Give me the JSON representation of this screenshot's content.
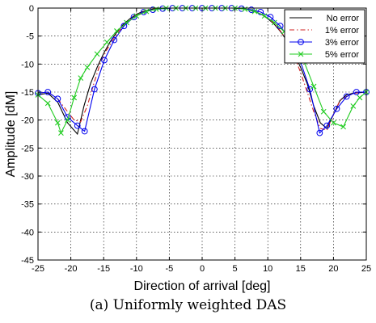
{
  "caption": "(a) Uniformly weighted DAS",
  "chart_data": {
    "type": "line",
    "title": "",
    "xlabel": "Direction of arrival [deg]",
    "ylabel": "Amplitude [dM]",
    "xlim": [
      -25,
      25
    ],
    "ylim": [
      -45,
      0
    ],
    "xticks": [
      -25,
      -20,
      -15,
      -10,
      -5,
      0,
      5,
      10,
      15,
      20,
      25
    ],
    "yticks": [
      0,
      -5,
      -10,
      -15,
      -20,
      -25,
      -30,
      -35,
      -40,
      -45
    ],
    "grid": true,
    "legend_position": "top-right",
    "series": [
      {
        "name": "No error",
        "color": "#000000",
        "dash": "solid",
        "marker": "none",
        "x": [
          -25,
          -23.5,
          -22,
          -20.5,
          -19,
          -18,
          -17,
          -16,
          -15,
          -14,
          -13,
          -12,
          -11,
          -10,
          -9,
          -8,
          -7,
          -6,
          -5,
          -4,
          -3,
          -2,
          -1,
          0,
          1,
          2,
          3,
          4,
          5,
          6,
          7,
          8,
          9,
          10,
          11,
          12,
          13,
          14,
          15,
          16,
          17,
          18,
          19,
          20,
          21,
          22,
          23,
          24,
          25
        ],
        "y": [
          -15.5,
          -15.2,
          -16.8,
          -20.5,
          -22.5,
          -17.5,
          -13.5,
          -10.6,
          -8.1,
          -6.0,
          -4.3,
          -2.9,
          -1.9,
          -1.1,
          -0.6,
          -0.3,
          -0.1,
          0,
          0,
          0,
          0,
          0,
          0,
          0,
          0,
          0,
          0,
          0,
          0,
          -0.1,
          -0.3,
          -0.6,
          -1.1,
          -1.9,
          -2.9,
          -4.3,
          -6.0,
          -8.1,
          -10.6,
          -13.5,
          -17.5,
          -20.5,
          -21.5,
          -19.0,
          -16.5,
          -15.5,
          -15.2,
          -15.1,
          -15.0
        ]
      },
      {
        "name": "1% error",
        "color": "#d02020",
        "dash": "dashdot",
        "marker": "none",
        "x": [
          -25,
          -23.5,
          -22,
          -20.5,
          -19.5,
          -18.5,
          -17.5,
          -16.5,
          -15.5,
          -14.5,
          -13,
          -12,
          -11,
          -10,
          -9,
          -8,
          -7,
          -6,
          -5,
          -4,
          -3,
          -2,
          -1,
          0,
          1,
          2,
          3,
          4,
          5,
          6,
          7,
          8,
          9,
          10,
          11,
          12,
          13,
          14,
          15,
          16,
          17,
          18,
          19,
          20,
          21,
          22,
          23,
          24,
          25
        ],
        "y": [
          -15.2,
          -15.0,
          -16.2,
          -18.5,
          -20.0,
          -20.3,
          -17.5,
          -13.5,
          -9.8,
          -7.4,
          -4.6,
          -3.2,
          -2.1,
          -1.2,
          -0.7,
          -0.3,
          -0.1,
          0,
          0,
          0,
          0,
          0,
          0,
          0,
          0,
          0,
          0,
          0,
          0,
          -0.1,
          -0.3,
          -0.6,
          -1.1,
          -1.8,
          -2.8,
          -4.2,
          -6.0,
          -8.5,
          -11.5,
          -15.0,
          -18.5,
          -21.5,
          -21.8,
          -19.0,
          -16.5,
          -15.8,
          -15.3,
          -15.0,
          -15.0
        ]
      },
      {
        "name": "3% error",
        "color": "#0000ee",
        "dash": "solid",
        "marker": "circle",
        "x": [
          -25,
          -23.5,
          -22,
          -20.5,
          -19,
          -17.9,
          -16.4,
          -14.9,
          -13.4,
          -11.9,
          -10.4,
          -8.9,
          -7.5,
          -6,
          -4.5,
          -3,
          -1.5,
          0,
          1.5,
          3,
          4.5,
          6,
          7.5,
          8.9,
          10.4,
          11.9,
          13.4,
          14.9,
          16.4,
          17.9,
          19,
          20.5,
          22,
          23.5,
          25
        ],
        "y": [
          -15.2,
          -15.0,
          -16.2,
          -19.5,
          -21.0,
          -22.0,
          -14.5,
          -9.3,
          -5.7,
          -3.2,
          -1.6,
          -0.7,
          -0.3,
          -0.1,
          0,
          0,
          0,
          0,
          0,
          0,
          0,
          -0.1,
          -0.3,
          -0.7,
          -1.6,
          -3.2,
          -5.7,
          -9.3,
          -14.5,
          -22.3,
          -21.0,
          -18.0,
          -15.8,
          -15.0,
          -15.0
        ]
      },
      {
        "name": "5% error",
        "color": "#22cc22",
        "dash": "solid",
        "marker": "x",
        "x": [
          -25,
          -23.5,
          -22,
          -21.5,
          -20.5,
          -19.5,
          -18.5,
          -17.5,
          -16,
          -14.5,
          -13,
          -11.5,
          -10,
          -8.5,
          -7,
          -5.5,
          -4,
          -2.5,
          -1,
          0.5,
          2,
          3.5,
          5,
          6.5,
          8,
          9.5,
          11,
          12.5,
          14,
          15.5,
          17,
          18.5,
          20,
          21.5,
          23,
          24,
          25
        ],
        "y": [
          -15.5,
          -17.0,
          -20.5,
          -22.3,
          -20.0,
          -16.0,
          -12.5,
          -10.6,
          -8.2,
          -6.1,
          -4.1,
          -2.6,
          -1.4,
          -0.6,
          -0.2,
          0,
          0,
          0,
          0,
          0,
          0,
          0,
          0,
          -0.2,
          -0.6,
          -1.4,
          -2.6,
          -4.2,
          -6.4,
          -9.5,
          -14.0,
          -18.5,
          -20.5,
          -21.2,
          -17.5,
          -16.0,
          -15.0
        ]
      }
    ]
  }
}
